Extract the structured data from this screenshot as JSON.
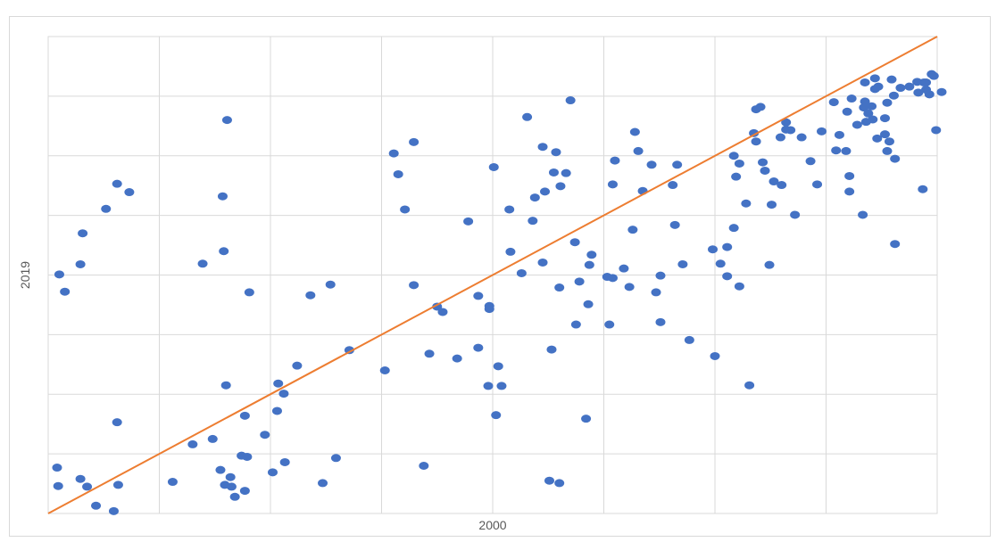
{
  "chart_data": {
    "type": "scatter",
    "title": "",
    "xlabel": "2000",
    "ylabel": "2019",
    "xlim": [
      0,
      8
    ],
    "ylim": [
      0,
      8
    ],
    "grid": true,
    "legend": "none",
    "series_color": "#4472c4",
    "trendline": {
      "type": "linear",
      "color": "#ed7d31",
      "from": [
        0,
        0
      ],
      "to": [
        8,
        8
      ]
    },
    "points": [
      [
        0.09,
        0.46
      ],
      [
        0.29,
        0.58
      ],
      [
        0.35,
        0.45
      ],
      [
        0.43,
        0.13
      ],
      [
        0.63,
        0.48
      ],
      [
        0.59,
        0.04
      ],
      [
        0.08,
        0.77
      ],
      [
        0.62,
        1.53
      ],
      [
        0.15,
        3.72
      ],
      [
        0.1,
        4.01
      ],
      [
        0.29,
        4.18
      ],
      [
        0.31,
        4.7
      ],
      [
        0.52,
        5.11
      ],
      [
        0.62,
        5.53
      ],
      [
        0.73,
        5.39
      ],
      [
        1.12,
        0.53
      ],
      [
        1.3,
        1.16
      ],
      [
        1.48,
        1.25
      ],
      [
        1.39,
        4.19
      ],
      [
        1.81,
        3.71
      ],
      [
        1.58,
        4.4
      ],
      [
        1.55,
        0.73
      ],
      [
        1.6,
        2.15
      ],
      [
        1.68,
        0.28
      ],
      [
        1.59,
        0.48
      ],
      [
        1.77,
        0.38
      ],
      [
        1.65,
        0.45
      ],
      [
        1.64,
        0.61
      ],
      [
        1.74,
        0.97
      ],
      [
        1.77,
        1.64
      ],
      [
        1.79,
        0.95
      ],
      [
        1.95,
        1.32
      ],
      [
        1.57,
        5.32
      ],
      [
        1.61,
        6.6
      ],
      [
        2.06,
        1.72
      ],
      [
        2.02,
        0.69
      ],
      [
        2.13,
        0.86
      ],
      [
        2.07,
        2.18
      ],
      [
        2.12,
        2.01
      ],
      [
        2.24,
        2.48
      ],
      [
        2.59,
        0.93
      ],
      [
        3.03,
        2.4
      ],
      [
        2.47,
        0.51
      ],
      [
        2.36,
        3.66
      ],
      [
        2.54,
        3.84
      ],
      [
        3.11,
        6.04
      ],
      [
        2.71,
        2.74
      ],
      [
        3.29,
        6.23
      ],
      [
        3.43,
        2.68
      ],
      [
        3.38,
        0.8
      ],
      [
        3.29,
        3.83
      ],
      [
        3.55,
        3.38
      ],
      [
        3.5,
        3.47
      ],
      [
        3.15,
        5.69
      ],
      [
        3.21,
        5.1
      ],
      [
        3.68,
        2.6
      ],
      [
        3.78,
        4.9
      ],
      [
        3.87,
        3.65
      ],
      [
        3.97,
        3.48
      ],
      [
        3.97,
        3.43
      ],
      [
        3.87,
        2.78
      ],
      [
        3.96,
        2.14
      ],
      [
        4.05,
        2.47
      ],
      [
        4.03,
        1.65
      ],
      [
        4.01,
        5.81
      ],
      [
        4.08,
        2.14
      ],
      [
        4.16,
        4.39
      ],
      [
        4.31,
        6.65
      ],
      [
        4.26,
        4.03
      ],
      [
        4.36,
        4.91
      ],
      [
        4.15,
        5.1
      ],
      [
        4.38,
        5.3
      ],
      [
        4.45,
        4.21
      ],
      [
        4.45,
        6.15
      ],
      [
        4.47,
        5.4
      ],
      [
        4.7,
        6.93
      ],
      [
        4.78,
        3.89
      ],
      [
        4.61,
        5.49
      ],
      [
        4.57,
        6.06
      ],
      [
        4.55,
        5.72
      ],
      [
        4.66,
        5.71
      ],
      [
        4.74,
        4.55
      ],
      [
        4.53,
        2.75
      ],
      [
        4.6,
        3.79
      ],
      [
        4.89,
        4.34
      ],
      [
        4.51,
        0.55
      ],
      [
        4.6,
        0.51
      ],
      [
        4.84,
        1.59
      ],
      [
        4.86,
        3.51
      ],
      [
        4.75,
        3.17
      ],
      [
        4.87,
        4.17
      ],
      [
        5.03,
        3.97
      ],
      [
        5.05,
        3.17
      ],
      [
        5.08,
        3.95
      ],
      [
        5.08,
        5.52
      ],
      [
        5.1,
        5.92
      ],
      [
        5.18,
        4.11
      ],
      [
        5.23,
        3.8
      ],
      [
        5.26,
        4.76
      ],
      [
        5.35,
        5.41
      ],
      [
        5.28,
        6.4
      ],
      [
        5.43,
        5.85
      ],
      [
        5.47,
        3.71
      ],
      [
        5.31,
        6.08
      ],
      [
        5.51,
        3.99
      ],
      [
        5.51,
        3.21
      ],
      [
        5.62,
        5.51
      ],
      [
        5.66,
        5.85
      ],
      [
        5.64,
        4.84
      ],
      [
        5.71,
        4.18
      ],
      [
        5.77,
        2.91
      ],
      [
        5.98,
        4.43
      ],
      [
        6.0,
        2.64
      ],
      [
        6.05,
        4.19
      ],
      [
        6.11,
        3.98
      ],
      [
        6.11,
        4.47
      ],
      [
        6.17,
        4.79
      ],
      [
        6.17,
        6.0
      ],
      [
        6.19,
        5.65
      ],
      [
        6.22,
        5.87
      ],
      [
        6.22,
        3.81
      ],
      [
        6.28,
        5.2
      ],
      [
        6.31,
        2.15
      ],
      [
        6.37,
        6.24
      ],
      [
        6.41,
        6.82
      ],
      [
        6.35,
        6.38
      ],
      [
        6.37,
        6.78
      ],
      [
        6.43,
        5.89
      ],
      [
        6.45,
        5.75
      ],
      [
        6.49,
        4.17
      ],
      [
        6.51,
        5.18
      ],
      [
        6.53,
        5.57
      ],
      [
        6.59,
        6.31
      ],
      [
        6.6,
        5.51
      ],
      [
        6.64,
        6.56
      ],
      [
        6.64,
        6.44
      ],
      [
        6.68,
        6.43
      ],
      [
        6.72,
        5.01
      ],
      [
        6.78,
        6.31
      ],
      [
        6.86,
        5.91
      ],
      [
        6.92,
        5.52
      ],
      [
        6.96,
        6.41
      ],
      [
        7.07,
        6.9
      ],
      [
        7.18,
        6.08
      ],
      [
        7.12,
        6.35
      ],
      [
        7.19,
        6.74
      ],
      [
        7.23,
        6.96
      ],
      [
        7.28,
        6.52
      ],
      [
        7.34,
        6.81
      ],
      [
        7.33,
        5.01
      ],
      [
        7.35,
        6.91
      ],
      [
        7.38,
        6.71
      ],
      [
        7.35,
        7.23
      ],
      [
        7.44,
        7.3
      ],
      [
        7.47,
        7.16
      ],
      [
        7.53,
        6.36
      ],
      [
        7.55,
        6.89
      ],
      [
        7.61,
        7.01
      ],
      [
        7.59,
        7.28
      ],
      [
        7.67,
        7.14
      ],
      [
        7.75,
        7.16
      ],
      [
        7.83,
        7.06
      ],
      [
        7.82,
        7.24
      ],
      [
        7.93,
        7.03
      ],
      [
        7.95,
        7.37
      ],
      [
        7.88,
        7.23
      ],
      [
        7.9,
        7.11
      ],
      [
        7.62,
        5.95
      ],
      [
        7.57,
        6.24
      ],
      [
        7.53,
        6.63
      ],
      [
        7.55,
        6.08
      ],
      [
        7.46,
        6.29
      ],
      [
        7.41,
        6.83
      ],
      [
        7.42,
        6.61
      ],
      [
        7.44,
        7.12
      ],
      [
        7.36,
        6.57
      ],
      [
        7.62,
        4.52
      ],
      [
        8.04,
        7.07
      ],
      [
        7.99,
        6.43
      ],
      [
        7.87,
        5.44
      ],
      [
        7.9,
        7.23
      ],
      [
        7.97,
        7.34
      ],
      [
        7.09,
        6.09
      ],
      [
        7.21,
        5.66
      ],
      [
        7.21,
        5.4
      ]
    ]
  }
}
